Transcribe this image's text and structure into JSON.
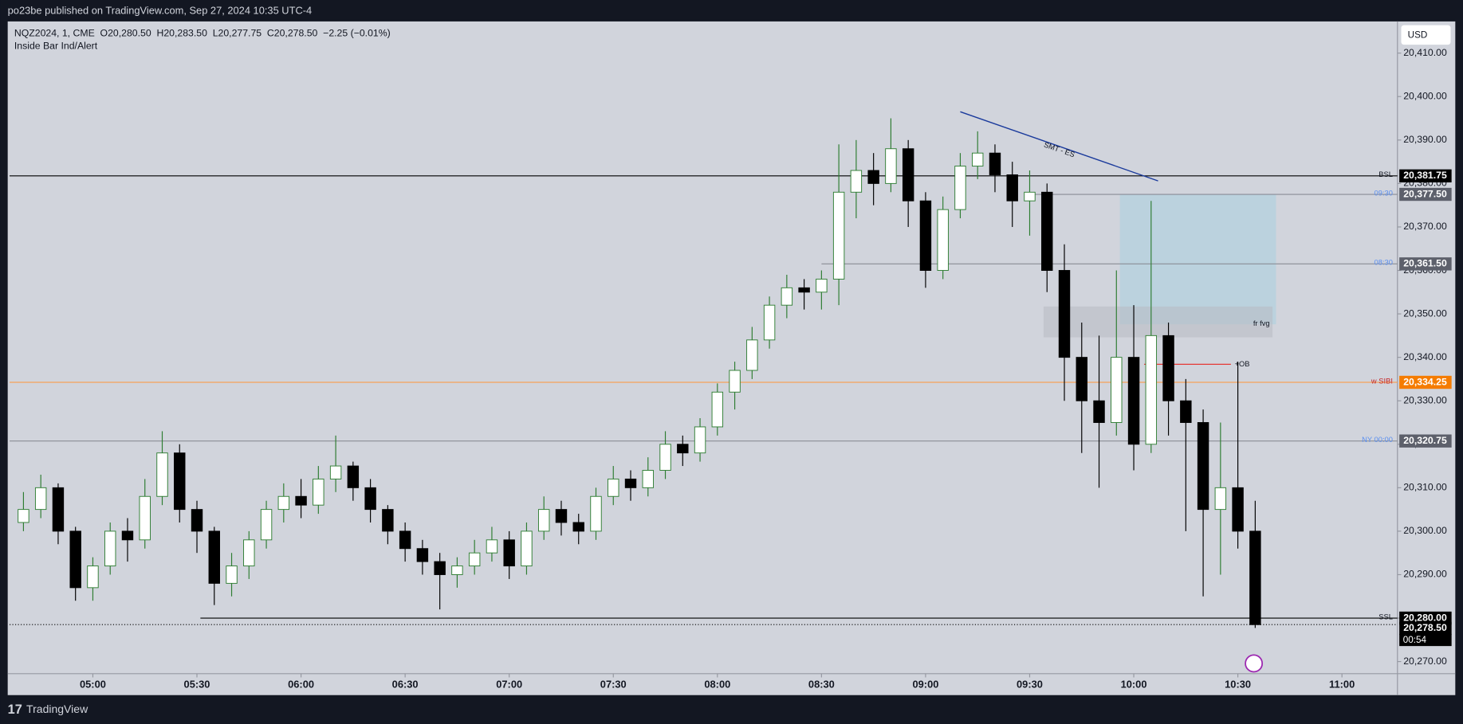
{
  "header": {
    "published": "po23be published on TradingView.com, Sep 27, 2024 10:35 UTC-4",
    "brand": "TradingView"
  },
  "chart_data": {
    "type": "candlestick",
    "symbol_line": "NQZ2024, 1, CME  O20,280.50  H20,283.50  L20,277.75  C20,278.50  −2.25 (−0.01%)",
    "indicator": "Inside Bar Ind/Alert",
    "currency": "USD",
    "x": [
      "04:40",
      "04:45",
      "04:50",
      "04:55",
      "05:00",
      "05:05",
      "05:10",
      "05:15",
      "05:20",
      "05:25",
      "05:30",
      "05:35",
      "05:40",
      "05:45",
      "05:50",
      "05:55",
      "06:00",
      "06:05",
      "06:10",
      "06:15",
      "06:20",
      "06:25",
      "06:30",
      "06:35",
      "06:40",
      "06:45",
      "06:50",
      "06:55",
      "07:00",
      "07:05",
      "07:10",
      "07:15",
      "07:20",
      "07:25",
      "07:30",
      "07:35",
      "07:40",
      "07:45",
      "07:50",
      "07:55",
      "08:00",
      "08:05",
      "08:10",
      "08:15",
      "08:20",
      "08:25",
      "08:30",
      "08:35",
      "08:40",
      "08:45",
      "08:50",
      "08:55",
      "09:00",
      "09:05",
      "09:10",
      "09:15",
      "09:20",
      "09:25",
      "09:30",
      "09:35",
      "09:40",
      "09:45",
      "09:50",
      "09:55",
      "10:00",
      "10:05",
      "10:10",
      "10:15",
      "10:20",
      "10:25",
      "10:30",
      "10:35"
    ],
    "open": [
      20302,
      20305,
      20310,
      20300,
      20287,
      20292,
      20300,
      20298,
      20308,
      20318,
      20305,
      20300,
      20288,
      20292,
      20298,
      20305,
      20308,
      20306,
      20312,
      20315,
      20310,
      20305,
      20300,
      20296,
      20293,
      20290,
      20292,
      20295,
      20298,
      20292,
      20300,
      20305,
      20302,
      20300,
      20308,
      20312,
      20310,
      20314,
      20320,
      20318,
      20324,
      20332,
      20337,
      20344,
      20352,
      20356,
      20355,
      20358,
      20378,
      20383,
      20380,
      20388,
      20376,
      20360,
      20374,
      20384,
      20387,
      20382,
      20376,
      20378,
      20360,
      20340,
      20330,
      20325,
      20340,
      20320,
      20345,
      20330,
      20325,
      20305,
      20310,
      20300
    ],
    "high": [
      20309,
      20313,
      20311,
      20301,
      20294,
      20302,
      20303,
      20312,
      20323,
      20320,
      20307,
      20301,
      20295,
      20300,
      20307,
      20311,
      20312,
      20315,
      20322,
      20316,
      20312,
      20306,
      20302,
      20298,
      20295,
      20294,
      20298,
      20301,
      20300,
      20302,
      20308,
      20307,
      20304,
      20310,
      20315,
      20314,
      20317,
      20323,
      20322,
      20326,
      20334,
      20339,
      20347,
      20354,
      20359,
      20358,
      20360,
      20389,
      20390,
      20387,
      20395,
      20390,
      20378,
      20377,
      20387,
      20392,
      20389,
      20385,
      20383,
      20380,
      20366,
      20348,
      20345,
      20360,
      20352,
      20376,
      20348,
      20335,
      20328,
      20325,
      20339,
      20307
    ],
    "low": [
      20300,
      20303,
      20297,
      20284,
      20284,
      20290,
      20293,
      20296,
      20306,
      20302,
      20295,
      20283,
      20285,
      20289,
      20296,
      20302,
      20303,
      20304,
      20309,
      20307,
      20302,
      20297,
      20293,
      20290,
      20282,
      20287,
      20290,
      20293,
      20289,
      20290,
      20298,
      20299,
      20297,
      20298,
      20306,
      20307,
      20308,
      20312,
      20315,
      20316,
      20322,
      20328,
      20335,
      20342,
      20349,
      20351,
      20351,
      20352,
      20372,
      20375,
      20378,
      20370,
      20356,
      20358,
      20372,
      20381,
      20378,
      20370,
      20368,
      20355,
      20330,
      20318,
      20310,
      20322,
      20314,
      20318,
      20322,
      20300,
      20285,
      20290,
      20296,
      20277.75
    ],
    "close": [
      20305,
      20310,
      20300,
      20287,
      20292,
      20300,
      20298,
      20308,
      20318,
      20305,
      20300,
      20288,
      20292,
      20298,
      20305,
      20308,
      20306,
      20312,
      20315,
      20310,
      20305,
      20300,
      20296,
      20293,
      20290,
      20292,
      20295,
      20298,
      20292,
      20300,
      20305,
      20302,
      20300,
      20308,
      20312,
      20310,
      20314,
      20320,
      20318,
      20324,
      20332,
      20337,
      20344,
      20352,
      20356,
      20355,
      20358,
      20378,
      20383,
      20380,
      20388,
      20376,
      20360,
      20374,
      20384,
      20387,
      20382,
      20376,
      20378,
      20360,
      20340,
      20330,
      20325,
      20340,
      20320,
      20345,
      20330,
      20325,
      20305,
      20310,
      20300,
      20278.5
    ],
    "up_color": "#ffffff",
    "down_color": "#000000",
    "up_wick": "#2e7d32",
    "down_wick": "#000000",
    "xlim": [
      "04:36",
      "11:16"
    ],
    "xticks": [
      "05:00",
      "05:30",
      "06:00",
      "06:30",
      "07:00",
      "07:30",
      "08:00",
      "08:30",
      "09:00",
      "09:30",
      "10:00",
      "10:30",
      "11:00"
    ],
    "ylim": [
      20267.21,
      20417.29
    ],
    "yticks": [
      {
        "value": 20270,
        "label": "20,270.00"
      },
      {
        "value": 20280,
        "label": "20,280.00"
      },
      {
        "value": 20290,
        "label": "20,290.00"
      },
      {
        "value": 20300,
        "label": "20,300.00"
      },
      {
        "value": 20310,
        "label": "20,310.00"
      },
      {
        "value": 20320,
        "label": "20,320.00"
      },
      {
        "value": 20330,
        "label": "20,330.00"
      },
      {
        "value": 20340,
        "label": "20,340.00"
      },
      {
        "value": 20350,
        "label": "20,350.00"
      },
      {
        "value": 20360,
        "label": "20,360.00"
      },
      {
        "value": 20370,
        "label": "20,370.00"
      },
      {
        "value": 20380,
        "label": "20,380.00"
      },
      {
        "value": 20390,
        "label": "20,390.00"
      },
      {
        "value": 20400,
        "label": "20,400.00"
      },
      {
        "value": 20410,
        "label": "20,410.00"
      }
    ],
    "grid": false,
    "levels": [
      {
        "label": "BSL",
        "value": 20381.75,
        "price_label": "20,381.75",
        "line_color": "#000000",
        "label_color": "#131722",
        "tag_color": "#000000"
      },
      {
        "label": "09:30",
        "from": "09:30",
        "value": 20377.5,
        "price_label": "20,377.50",
        "line_color": "#8a8d96",
        "label_color": "#5b8ff0",
        "tag_color": "#5d606b"
      },
      {
        "label": "08:30",
        "from": "08:30",
        "value": 20361.5,
        "price_label": "20,361.50",
        "line_color": "#8a8d96",
        "label_color": "#5b8ff0",
        "tag_color": "#5d606b"
      },
      {
        "label": "w SIBI",
        "value": 20334.25,
        "price_label": "20,334.25",
        "line_color": "#f5a05a",
        "label_color": "#c62828",
        "tag_color": "#f57c00"
      },
      {
        "label": "NY 00:00",
        "value": 20320.75,
        "price_label": "20,320.75",
        "line_color": "#8a8d96",
        "label_color": "#5b8ff0",
        "tag_color": "#5d606b"
      },
      {
        "label": "SSL",
        "from": "05:31",
        "value": 20280,
        "price_label": "20,280.00",
        "line_color": "#000000",
        "label_color": "#131722",
        "tag_color": "#000000"
      }
    ],
    "last": {
      "value": 20278.5,
      "label": "20,278.50",
      "countdown": "00:54",
      "color": "#000000"
    },
    "boxes": [
      {
        "x1": "09:56",
        "x2": "10:41",
        "y1": 20377.5,
        "y2": 20347.6,
        "color": "#a9cfe0"
      },
      {
        "text": "fr fvg",
        "x1": "09:34",
        "x2": "10:40",
        "y1": 20351.7,
        "y2": 20344.6,
        "color": "#b8bac2"
      }
    ],
    "trendline": {
      "text": "SMT - ES",
      "x1": "09:10",
      "y1": 20396.5,
      "x2": "10:07",
      "y2": 20380.6,
      "color": "#1a3a9c"
    },
    "ob": {
      "text": "+OB",
      "x1": "10:03",
      "x2": "10:28",
      "value": 20338.4,
      "color": "#e53935"
    }
  }
}
